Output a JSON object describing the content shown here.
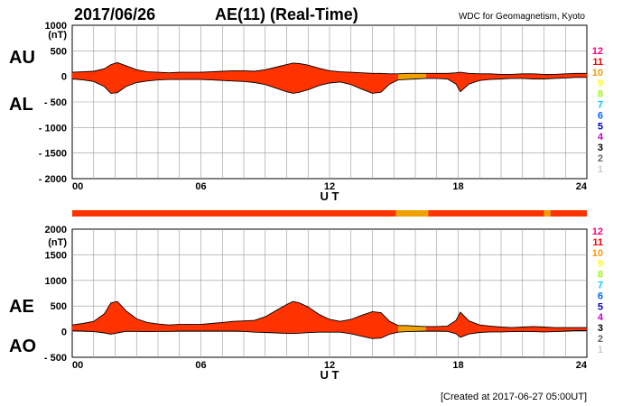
{
  "header": {
    "date": "2017/06/26",
    "title": "AE(11) (Real-Time)",
    "source": "WDC for Geomagnetism, Kyoto"
  },
  "footer": {
    "created": "[Created at 2017-06-27 05:00UT]"
  },
  "colors": {
    "fill": "#ff3300",
    "fill_partial": "#f0a000",
    "grid": "#999999"
  },
  "station_scale": {
    "labels": [
      "12",
      "11",
      "10",
      "9",
      "8",
      "7",
      "6",
      "5",
      "4",
      "3",
      "2",
      "1"
    ],
    "colors": [
      "#ff0080",
      "#ff0000",
      "#ff9900",
      "#ffff00",
      "#99ff00",
      "#00ccff",
      "#0066ff",
      "#0000cc",
      "#cc00cc",
      "#000000",
      "#666666",
      "#cccccc"
    ]
  },
  "station_bar": {
    "segments": [
      {
        "from": 0,
        "to": 15.1,
        "color": "#ff3300"
      },
      {
        "from": 15.1,
        "to": 16.6,
        "color": "#f0a000"
      },
      {
        "from": 16.6,
        "to": 22.0,
        "color": "#ff3300"
      },
      {
        "from": 22.0,
        "to": 22.3,
        "color": "#f0a000"
      },
      {
        "from": 22.3,
        "to": 24,
        "color": "#ff3300"
      }
    ]
  },
  "chart_data": [
    {
      "type": "area",
      "panel": "AU/AL",
      "side_labels": [
        "AU",
        "AL"
      ],
      "unit": "(nT)",
      "xlabel": "U T",
      "xlim": [
        0,
        24
      ],
      "ylim": [
        -2000,
        1000
      ],
      "xticks": [
        0,
        6,
        12,
        18,
        24
      ],
      "xtick_labels": [
        "00",
        "06",
        "12",
        "18",
        "24"
      ],
      "yticks": [
        1000,
        500,
        0,
        -500,
        -1000,
        -1500,
        -2000
      ],
      "ytick_labels": [
        "1000",
        "500",
        "0",
        "- 500",
        "- 1000",
        "- 1500",
        "- 2000"
      ],
      "x": [
        0,
        0.5,
        1,
        1.5,
        1.8,
        2.1,
        2.5,
        3,
        3.5,
        4,
        4.5,
        5,
        5.5,
        6,
        6.5,
        7,
        7.5,
        8,
        8.5,
        9,
        9.5,
        10,
        10.3,
        10.6,
        11,
        11.5,
        12,
        12.5,
        13,
        13.5,
        14,
        14.4,
        14.8,
        15.2,
        15.6,
        16,
        16.5,
        17,
        17.5,
        17.9,
        18.1,
        18.5,
        19,
        19.5,
        20,
        20.5,
        21,
        21.5,
        22,
        22.5,
        23,
        23.5,
        24
      ],
      "series": [
        {
          "name": "AU",
          "values": [
            80,
            90,
            100,
            150,
            230,
            270,
            210,
            130,
            90,
            80,
            70,
            80,
            80,
            80,
            90,
            100,
            110,
            110,
            100,
            130,
            180,
            230,
            260,
            250,
            220,
            160,
            110,
            90,
            80,
            70,
            60,
            60,
            50,
            50,
            60,
            60,
            60,
            60,
            60,
            70,
            80,
            60,
            50,
            50,
            40,
            40,
            50,
            50,
            40,
            40,
            50,
            60,
            60
          ]
        },
        {
          "name": "AL",
          "values": [
            -50,
            -70,
            -100,
            -200,
            -330,
            -320,
            -200,
            -120,
            -90,
            -70,
            -60,
            -60,
            -60,
            -60,
            -70,
            -80,
            -90,
            -100,
            -120,
            -160,
            -230,
            -300,
            -330,
            -310,
            -260,
            -180,
            -130,
            -110,
            -160,
            -250,
            -330,
            -310,
            -150,
            -70,
            -60,
            -50,
            -40,
            -40,
            -50,
            -150,
            -300,
            -150,
            -80,
            -60,
            -50,
            -40,
            -40,
            -50,
            -50,
            -40,
            -30,
            -20,
            -20
          ]
        }
      ]
    },
    {
      "type": "area",
      "panel": "AE/AO",
      "side_labels": [
        "AE",
        "AO"
      ],
      "unit": "(nT)",
      "xlabel": "U T",
      "xlim": [
        0,
        24
      ],
      "ylim": [
        -500,
        2000
      ],
      "xticks": [
        0,
        6,
        12,
        18,
        24
      ],
      "xtick_labels": [
        "00",
        "06",
        "12",
        "18",
        "24"
      ],
      "yticks": [
        2000,
        1500,
        1000,
        500,
        0,
        -500
      ],
      "ytick_labels": [
        "2000",
        "1500",
        "1000",
        "500",
        "0",
        "- 500"
      ],
      "x": [
        0,
        0.5,
        1,
        1.5,
        1.8,
        2.1,
        2.5,
        3,
        3.5,
        4,
        4.5,
        5,
        5.5,
        6,
        6.5,
        7,
        7.5,
        8,
        8.5,
        9,
        9.5,
        10,
        10.3,
        10.6,
        11,
        11.5,
        12,
        12.5,
        13,
        13.5,
        14,
        14.4,
        14.8,
        15.2,
        15.6,
        16,
        16.5,
        17,
        17.5,
        17.9,
        18.1,
        18.5,
        19,
        19.5,
        20,
        20.5,
        21,
        21.5,
        22,
        22.5,
        23,
        23.5,
        24
      ],
      "series": [
        {
          "name": "AE",
          "values": [
            130,
            160,
            200,
            350,
            560,
            590,
            410,
            250,
            180,
            150,
            130,
            140,
            140,
            140,
            160,
            180,
            200,
            210,
            220,
            290,
            410,
            530,
            590,
            560,
            480,
            340,
            240,
            200,
            240,
            320,
            390,
            370,
            200,
            120,
            120,
            110,
            100,
            100,
            110,
            220,
            380,
            210,
            130,
            110,
            90,
            80,
            90,
            100,
            90,
            80,
            80,
            80,
            80
          ]
        },
        {
          "name": "AO",
          "values": [
            15,
            10,
            0,
            -25,
            -50,
            -25,
            5,
            5,
            0,
            5,
            5,
            10,
            10,
            10,
            10,
            10,
            10,
            5,
            -10,
            -15,
            -25,
            -35,
            -35,
            -30,
            -20,
            -10,
            -10,
            -10,
            -40,
            -90,
            -135,
            -125,
            -50,
            -10,
            0,
            5,
            10,
            10,
            5,
            -40,
            -110,
            -45,
            -15,
            -5,
            -5,
            0,
            5,
            0,
            -5,
            0,
            10,
            20,
            20
          ]
        }
      ]
    }
  ]
}
